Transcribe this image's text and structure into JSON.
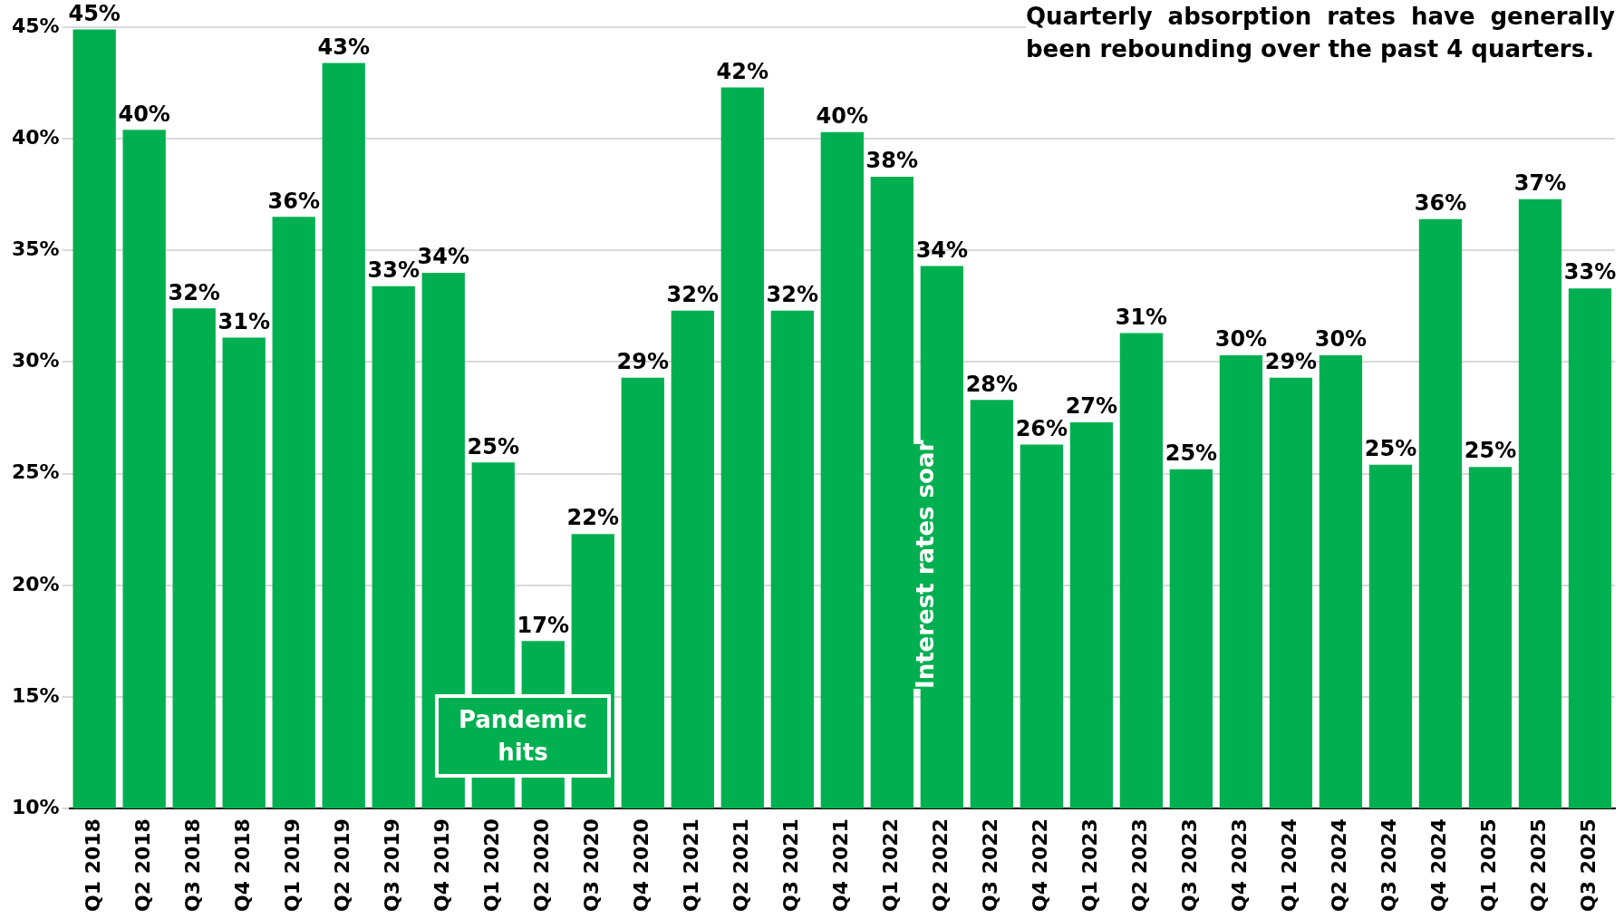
{
  "chart_data": {
    "type": "bar",
    "categories": [
      "Q1 2018",
      "Q2 2018",
      "Q3 2018",
      "Q4 2018",
      "Q1 2019",
      "Q2 2019",
      "Q3 2019",
      "Q4 2019",
      "Q1 2020",
      "Q2 2020",
      "Q3 2020",
      "Q4 2020",
      "Q1 2021",
      "Q2 2021",
      "Q3 2021",
      "Q4 2021",
      "Q1 2022",
      "Q2 2022",
      "Q3 2022",
      "Q4 2022",
      "Q1 2023",
      "Q2 2023",
      "Q3 2023",
      "Q4 2023",
      "Q1 2024",
      "Q2 2024",
      "Q3 2024",
      "Q4 2024",
      "Q1 2025",
      "Q2 2025",
      "Q3 2025"
    ],
    "values": [
      44.9,
      40.4,
      32.4,
      31.1,
      36.5,
      43.4,
      33.4,
      34.0,
      25.5,
      17.5,
      22.3,
      29.3,
      32.3,
      42.3,
      32.3,
      40.3,
      38.3,
      34.3,
      28.3,
      26.3,
      27.3,
      31.3,
      25.2,
      30.3,
      29.3,
      30.3,
      25.4,
      36.4,
      25.3,
      37.3,
      33.3
    ],
    "value_labels": [
      "45%",
      "40%",
      "32%",
      "31%",
      "36%",
      "43%",
      "33%",
      "34%",
      "25%",
      "17%",
      "22%",
      "29%",
      "32%",
      "42%",
      "32%",
      "40%",
      "38%",
      "34%",
      "28%",
      "26%",
      "27%",
      "31%",
      "25%",
      "30%",
      "29%",
      "30%",
      "25%",
      "36%",
      "25%",
      "37%",
      "33%"
    ],
    "color": "#00b050",
    "ylim": [
      10,
      45
    ],
    "yticks": [
      {
        "value": 10,
        "label": "10%"
      },
      {
        "value": 15,
        "label": "15%"
      },
      {
        "value": 20,
        "label": "20%"
      },
      {
        "value": 25,
        "label": "25%"
      },
      {
        "value": 30,
        "label": "30%"
      },
      {
        "value": 35,
        "label": "35%"
      },
      {
        "value": 40,
        "label": "40%"
      },
      {
        "value": 45,
        "label": "45%"
      }
    ],
    "grid": "y",
    "legend": false,
    "annotations": [
      "Quarterly absorption rates have generally been rebounding over the past 4 quarters.",
      "Pandemic hits",
      "Interest rates soar"
    ]
  }
}
